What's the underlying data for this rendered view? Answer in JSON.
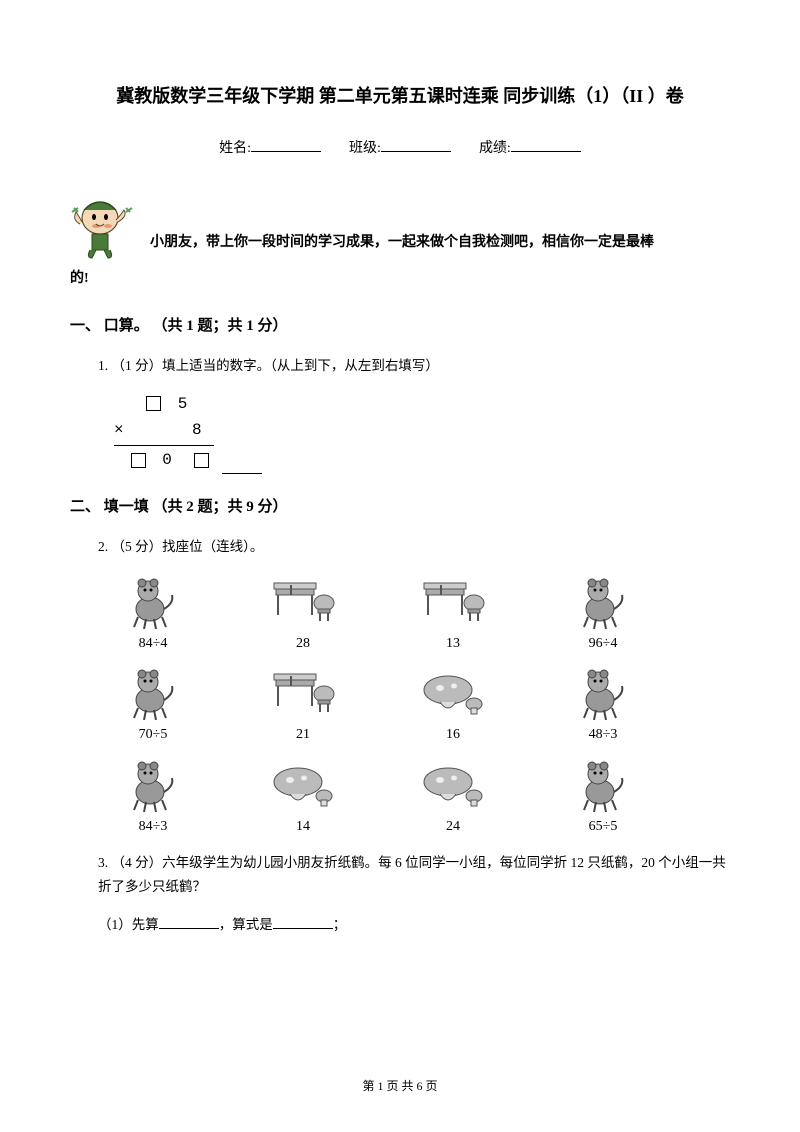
{
  "title": "冀教版数学三年级下学期 第二单元第五课时连乘 同步训练（1）（II ）卷",
  "info": {
    "name_label": "姓名:",
    "class_label": "班级:",
    "score_label": "成绩:"
  },
  "intro": {
    "line1": "小朋友，带上你一段时间的学习成果，一起来做个自我检测吧，相信你一定是最棒",
    "line2": "的!"
  },
  "section1": {
    "header": "一、 口算。 （共 1 题；共 1 分）",
    "q1_text": "1.  （1 分）填上适当的数字。（从上到下，从左到右填写）",
    "mult": {
      "row1_tail": " 5",
      "row2_pre": "×    8",
      "row3_mid": " 0 "
    }
  },
  "section2": {
    "header": "二、 填一填 （共 2 题；共 9 分）",
    "q2_text": "2.  （5 分）找座位（连线）。",
    "match_grid": {
      "row1": [
        {
          "type": "animal",
          "label": "84÷4"
        },
        {
          "type": "desk",
          "label": "28"
        },
        {
          "type": "desk",
          "label": "13"
        },
        {
          "type": "animal",
          "label": "96÷4"
        }
      ],
      "row2": [
        {
          "type": "animal",
          "label": "70÷5"
        },
        {
          "type": "desk",
          "label": "21"
        },
        {
          "type": "mushroom",
          "label": "16"
        },
        {
          "type": "animal",
          "label": "48÷3"
        }
      ],
      "row3": [
        {
          "type": "animal",
          "label": "84÷3"
        },
        {
          "type": "mushroom",
          "label": "14"
        },
        {
          "type": "mushroom",
          "label": "24"
        },
        {
          "type": "animal",
          "label": "65÷5"
        }
      ]
    },
    "q3_text": "3.  （4 分）六年级学生为幼儿园小朋友折纸鹤。每 6 位同学一小组，每位同学折 12 只纸鹤，20 个小组一共折了多少只纸鹤？",
    "q3_sub1_pre": "（1）先算",
    "q3_sub1_mid": "，算式是",
    "q3_sub1_end": "；"
  },
  "footer": "第 1 页 共 6 页",
  "colors": {
    "text": "#000000",
    "bg": "#ffffff",
    "gray_pic": "#888888"
  }
}
